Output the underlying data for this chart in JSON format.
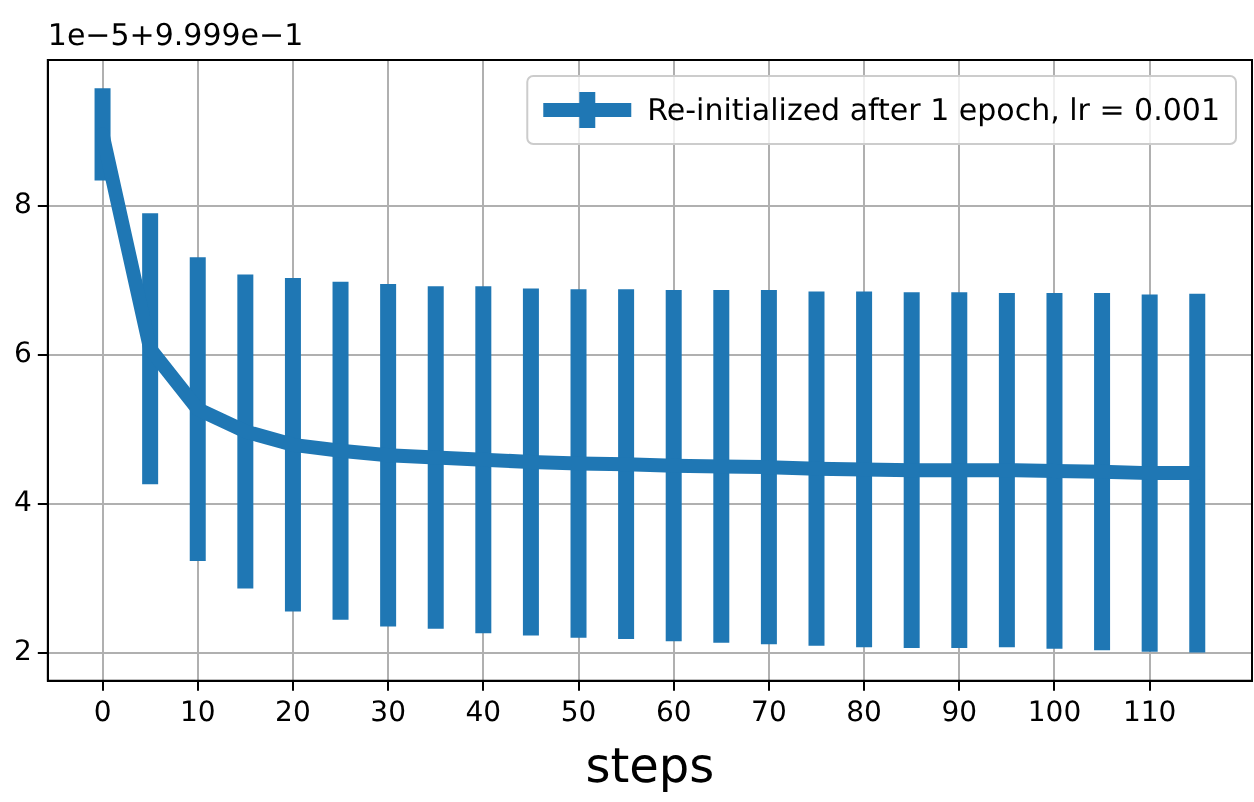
{
  "chart_data": {
    "type": "line",
    "xlabel": "steps",
    "annotations": [
      "1e−5+9.999e−1"
    ],
    "x": [
      0,
      5,
      10,
      15,
      20,
      25,
      30,
      35,
      40,
      45,
      50,
      55,
      60,
      65,
      70,
      75,
      80,
      85,
      90,
      95,
      100,
      105,
      110,
      115
    ],
    "series": [
      {
        "name": "Re-initialized after 1 epoch, lr = 0.001",
        "color": "#1f77b4",
        "values": [
          8.96,
          6.08,
          5.27,
          4.97,
          4.79,
          4.71,
          4.65,
          4.62,
          4.59,
          4.56,
          4.54,
          4.53,
          4.51,
          4.5,
          4.49,
          4.47,
          4.46,
          4.45,
          4.45,
          4.45,
          4.44,
          4.43,
          4.41,
          4.41
        ],
        "errors": [
          0.62,
          1.82,
          2.04,
          2.11,
          2.24,
          2.27,
          2.3,
          2.3,
          2.33,
          2.33,
          2.34,
          2.35,
          2.36,
          2.37,
          2.38,
          2.38,
          2.39,
          2.39,
          2.39,
          2.38,
          2.39,
          2.4,
          2.4,
          2.41
        ]
      }
    ],
    "xlim": [
      -5.75,
      120.75
    ],
    "xticks": [
      0,
      10,
      20,
      30,
      40,
      50,
      60,
      70,
      80,
      90,
      100,
      110
    ],
    "ylim": [
      1.62,
      9.96
    ],
    "yticks": [
      2,
      4,
      6,
      8
    ],
    "grid": true,
    "legend": "top right"
  }
}
